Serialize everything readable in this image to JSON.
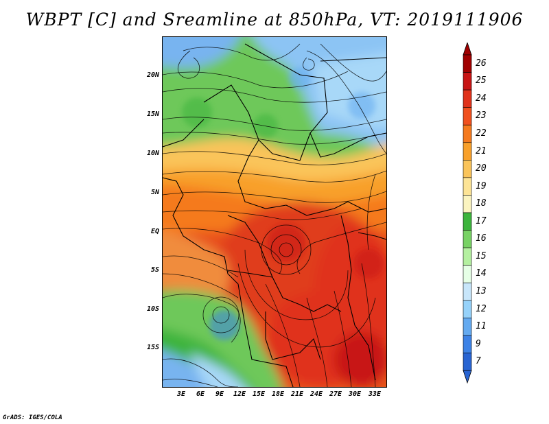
{
  "title": "WBPT [C] and Sreamline at 850hPa, VT: 2019111906",
  "footer": "GrADS: IGES/COLA",
  "map": {
    "y_ticks": [
      "20N",
      "15N",
      "10N",
      "5N",
      "EQ",
      "5S",
      "10S",
      "15S"
    ],
    "x_ticks": [
      "3E",
      "6E",
      "9E",
      "12E",
      "15E",
      "18E",
      "21E",
      "24E",
      "27E",
      "30E",
      "33E"
    ]
  },
  "colorbar": {
    "labels": [
      "26",
      "25",
      "24",
      "23",
      "22",
      "21",
      "20",
      "19",
      "18",
      "17",
      "16",
      "15",
      "14",
      "13",
      "12",
      "11",
      "9",
      "7"
    ],
    "colors": [
      "#a00000",
      "#c81414",
      "#e0321a",
      "#f0501e",
      "#f57a1e",
      "#f8a02a",
      "#fac45a",
      "#fde496",
      "#fbf4c0",
      "#3cb43c",
      "#78d264",
      "#b4f0a0",
      "#e6ffe6",
      "#c8e6fa",
      "#96d2fa",
      "#64aaf0",
      "#3c82e6",
      "#2864d2"
    ]
  },
  "colors": {
    "hot": "#e03c1e",
    "warm": "#f08c3c",
    "green": "#6ec85a",
    "blue": "#78b4f0"
  }
}
